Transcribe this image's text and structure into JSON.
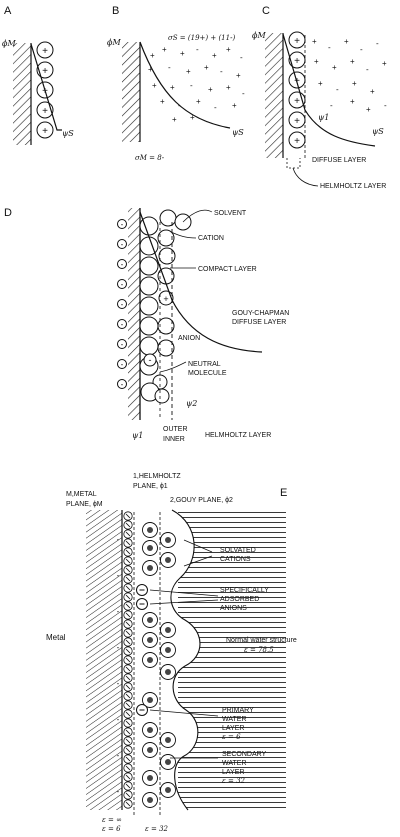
{
  "panels": {
    "a": {
      "letter": "A",
      "phi_m": "ϕM",
      "psi_s": "ψS"
    },
    "b": {
      "letter": "B",
      "phi_m": "ϕM",
      "sigma_eq": "σS = (19+) + (11-)",
      "sigma_m": "σM = 8-",
      "psi_s": "ψS"
    },
    "c": {
      "letter": "C",
      "phi_m": "ϕM",
      "psi_1": "ψ1",
      "psi_s": "ψS",
      "diffuse_layer": "DIFFUSE LAYER",
      "helmholtz_layer": "HELMHOLTZ LAYER"
    },
    "d": {
      "letter": "D",
      "solvent": "SOLVENT",
      "cation": "CATION",
      "compact_layer": "COMPACT LAYER",
      "gouy_chapman_1": "GOUY-CHAPMAN",
      "gouy_chapman_2": "DIFFUSE LAYER",
      "anion": "ANION",
      "neutral_1": "NEUTRAL",
      "neutral_2": "MOLECULE",
      "psi_2": "ψ2",
      "psi_1": "ψ1",
      "outer": "OUTER",
      "inner": "INNER",
      "helmholtz_layer": "HELMHOLTZ LAYER"
    },
    "e": {
      "letter": "E",
      "metal_plane_1": "M,METAL",
      "metal_plane_2": "PLANE, ϕM",
      "helmholtz_1": "1,HELMHOLTZ",
      "helmholtz_2": "PLANE, ϕ1",
      "gouy_plane": "2,GOUY PLANE, ϕ2",
      "solvated_1": "SOLVATED",
      "solvated_2": "CATIONS",
      "adsorbed_1": "SPECIFICALLY",
      "adsorbed_2": "ADSORBED",
      "adsorbed_3": "ANIONS",
      "metal": "Metal",
      "normal_water": "Normal water structure",
      "eps_785": "ε = 78.5",
      "primary_1": "PRIMARY",
      "primary_2": "WATER",
      "primary_3": "LAYER",
      "eps_6": "ε = 6",
      "secondary_1": "SECONDARY",
      "secondary_2": "WATER",
      "secondary_3": "LAYER",
      "eps_32": "ε = 32",
      "bottom_eps_inf": "ε = ∞",
      "bottom_eps_6": "ε = 6",
      "bottom_eps_32": "ε = 32"
    }
  }
}
